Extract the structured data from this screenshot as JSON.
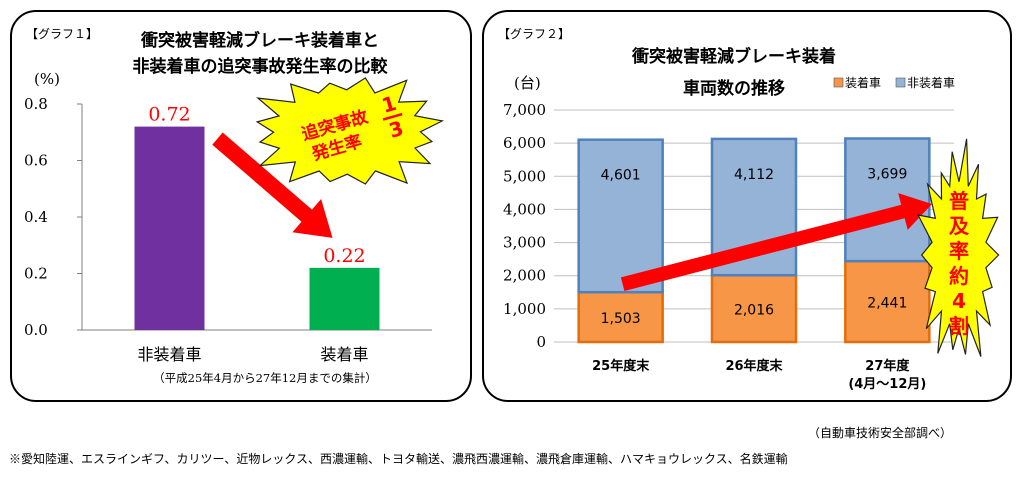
{
  "chart_data": [
    {
      "type": "bar",
      "tag": "【グラフ１】",
      "title_lines": [
        "衝突被害軽減ブレーキ装着車と",
        "非装着車の追突事故発生率の比較"
      ],
      "ylabel": "(%)",
      "ylim": [
        0,
        0.8
      ],
      "yticks": [
        "0.0",
        "0.2",
        "0.4",
        "0.6",
        "0.8"
      ],
      "categories": [
        "非装着車",
        "装着車"
      ],
      "values": [
        0.72,
        0.22
      ],
      "value_labels": [
        "0.72",
        "0.22"
      ],
      "colors": [
        "#7030a0",
        "#00b050"
      ],
      "note": "（平成25年4月から27年12月までの集計）",
      "burst": {
        "line1": "追突事故",
        "line2": "発生率",
        "fraction_num": "1",
        "fraction_den": "3"
      },
      "grid": false
    },
    {
      "type": "bar",
      "stacked": true,
      "tag": "【グラフ２】",
      "title_lines": [
        "衝突被害軽減ブレーキ装着",
        "車両数の推移"
      ],
      "ylabel": "(台)",
      "ylim": [
        0,
        7000
      ],
      "yticks": [
        "0",
        "1,000",
        "2,000",
        "3,000",
        "4,000",
        "5,000",
        "6,000",
        "7,000"
      ],
      "categories": [
        [
          "25年度末"
        ],
        [
          "26年度末"
        ],
        [
          "27年度",
          "(4月～12月)"
        ]
      ],
      "series": [
        {
          "name": "装着車",
          "values": [
            1503,
            2016,
            2441
          ],
          "labels": [
            "1,503",
            "2,016",
            "2,441"
          ],
          "color": "#f79646"
        },
        {
          "name": "非装着車",
          "values": [
            4601,
            4112,
            3699
          ],
          "labels": [
            "4,601",
            "4,112",
            "3,699"
          ],
          "color": "#95b3d7"
        }
      ],
      "legend_position": "top-right",
      "burst_text": [
        "普",
        "及",
        "率",
        "約",
        "4",
        "割"
      ],
      "grid": true
    }
  ],
  "source_note": "（自動車技術安全部調べ）",
  "footnote": "※愛知陸運、エスラインギフ、カリツー、近物レックス、西濃運輸、トヨタ輸送、濃飛西濃運輸、濃飛倉庫運輸、ハマキョウレックス、名鉄運輸"
}
